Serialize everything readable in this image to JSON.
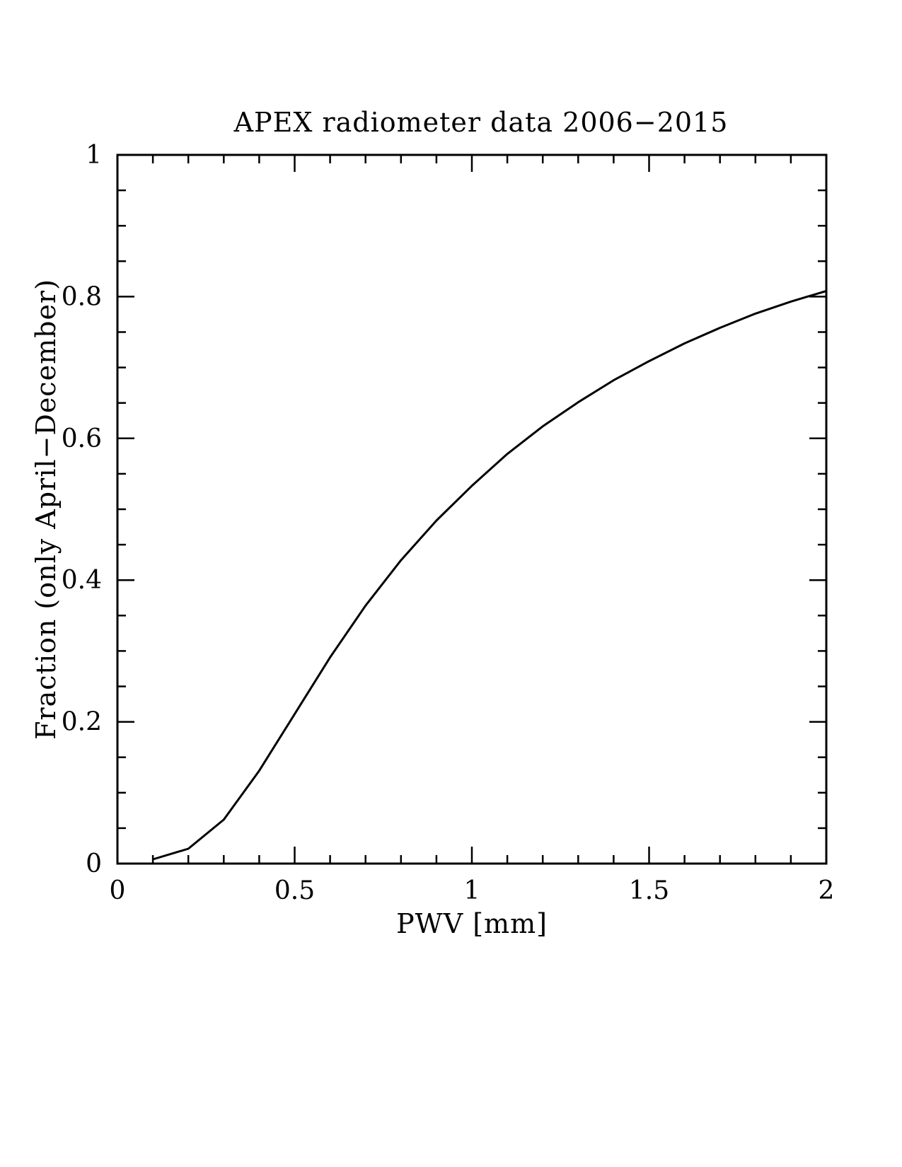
{
  "chart_data": {
    "type": "line",
    "title": "APEX radiometer data 2006−2015",
    "xlabel": "PWV [mm]",
    "ylabel": "Fraction (only April−December)",
    "xlim": [
      0,
      2
    ],
    "ylim": [
      0,
      1
    ],
    "x_ticks": [
      "0",
      "0.5",
      "1",
      "1.5",
      "2"
    ],
    "y_ticks": [
      "0",
      "0.2",
      "0.4",
      "0.6",
      "0.8",
      "1"
    ],
    "x_tick_values": [
      0,
      0.5,
      1,
      1.5,
      2
    ],
    "y_tick_values": [
      0,
      0.2,
      0.4,
      0.6,
      0.8,
      1
    ],
    "x_minor_step": 0.1,
    "y_minor_step": 0.05,
    "grid": false,
    "legend": "none",
    "series": [
      {
        "x": [
          0.1,
          0.2,
          0.3,
          0.4,
          0.5,
          0.6,
          0.7,
          0.8,
          0.9,
          1.0,
          1.1,
          1.2,
          1.3,
          1.4,
          1.5,
          1.6,
          1.7,
          1.8,
          1.9,
          2.0
        ],
        "y": [
          0.006,
          0.021,
          0.062,
          0.131,
          0.211,
          0.291,
          0.364,
          0.428,
          0.484,
          0.533,
          0.578,
          0.617,
          0.651,
          0.682,
          0.709,
          0.734,
          0.756,
          0.776,
          0.793,
          0.808
        ],
        "color": "#000000"
      }
    ]
  }
}
